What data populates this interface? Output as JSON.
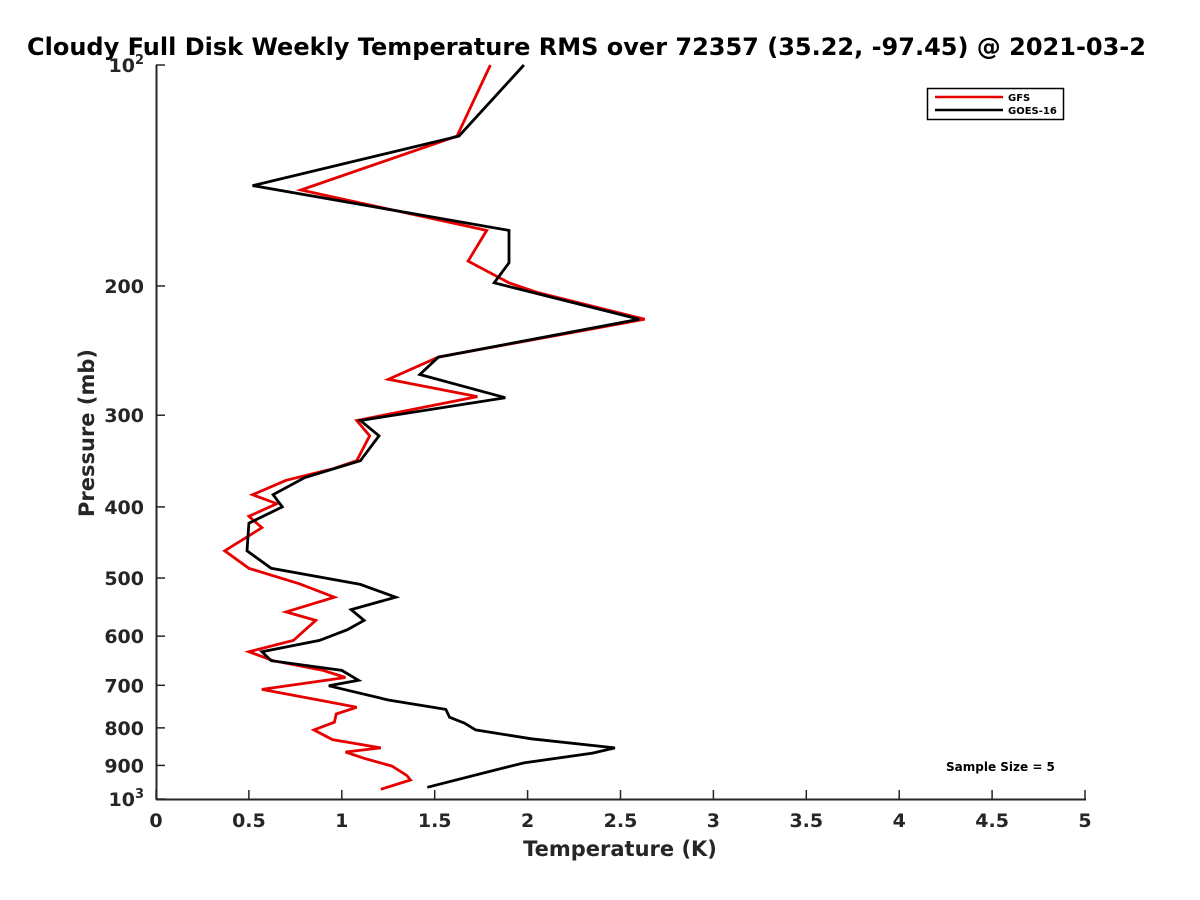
{
  "chart_data": {
    "type": "line",
    "title": "Cloudy Full Disk Weekly Temperature RMS over 72357 (35.22, -97.45) @ 2021-03-2",
    "xlabel": "Temperature (K)",
    "ylabel": "Pressure (mb)",
    "xlim": [
      0,
      5
    ],
    "ylim": [
      1000,
      100
    ],
    "y_scale": "log",
    "x_ticks": [
      "0",
      "0.5",
      "1",
      "1.5",
      "2",
      "2.5",
      "3",
      "3.5",
      "4",
      "4.5",
      "5"
    ],
    "x_tick_values": [
      0,
      0.5,
      1,
      1.5,
      2,
      2.5,
      3,
      3.5,
      4,
      4.5,
      5
    ],
    "y_ticks": [
      {
        "value": 100,
        "label": "10",
        "sup": "2"
      },
      {
        "value": 200,
        "label": "200"
      },
      {
        "value": 300,
        "label": "300"
      },
      {
        "value": 400,
        "label": "400"
      },
      {
        "value": 500,
        "label": "500"
      },
      {
        "value": 600,
        "label": "600"
      },
      {
        "value": 700,
        "label": "700"
      },
      {
        "value": 800,
        "label": "800"
      },
      {
        "value": 900,
        "label": "900"
      },
      {
        "value": 1000,
        "label": "10",
        "sup": "3"
      }
    ],
    "grid": false,
    "legend": "top-right",
    "annotation": "Sample Size = 5",
    "series": [
      {
        "name": "GFS",
        "color": "#e60000",
        "points": [
          [
            1.8,
            100
          ],
          [
            1.62,
            125
          ],
          [
            0.78,
            148
          ],
          [
            1.78,
            168
          ],
          [
            1.68,
            185
          ],
          [
            1.9,
            198
          ],
          [
            2.05,
            204
          ],
          [
            2.63,
            222
          ],
          [
            1.52,
            250
          ],
          [
            1.25,
            268
          ],
          [
            1.73,
            283
          ],
          [
            1.08,
            305
          ],
          [
            1.15,
            320
          ],
          [
            1.08,
            346
          ],
          [
            0.95,
            355
          ],
          [
            0.7,
            368
          ],
          [
            0.52,
            385
          ],
          [
            0.65,
            396
          ],
          [
            0.5,
            412
          ],
          [
            0.57,
            427
          ],
          [
            0.37,
            459
          ],
          [
            0.5,
            485
          ],
          [
            0.77,
            509
          ],
          [
            0.96,
            531
          ],
          [
            0.7,
            556
          ],
          [
            0.86,
            571
          ],
          [
            0.8,
            589
          ],
          [
            0.74,
            608
          ],
          [
            0.5,
            630
          ],
          [
            0.63,
            648
          ],
          [
            0.9,
            668
          ],
          [
            1.02,
            683
          ],
          [
            0.57,
            709
          ],
          [
            0.9,
            735
          ],
          [
            1.08,
            750
          ],
          [
            0.97,
            766
          ],
          [
            0.96,
            786
          ],
          [
            0.85,
            805
          ],
          [
            0.95,
            830
          ],
          [
            1.21,
            852
          ],
          [
            1.02,
            863
          ],
          [
            1.12,
            880
          ],
          [
            1.27,
            902
          ],
          [
            1.35,
            929
          ],
          [
            1.37,
            942
          ],
          [
            1.21,
            970
          ]
        ]
      },
      {
        "name": "GOES-16",
        "color": "#000000",
        "points": [
          [
            1.98,
            100
          ],
          [
            1.63,
            125
          ],
          [
            0.52,
            146
          ],
          [
            1.9,
            168
          ],
          [
            1.9,
            186
          ],
          [
            1.82,
            198
          ],
          [
            2.6,
            222
          ],
          [
            1.52,
            250
          ],
          [
            1.42,
            264
          ],
          [
            1.88,
            284
          ],
          [
            1.1,
            305
          ],
          [
            1.2,
            320
          ],
          [
            1.1,
            346
          ],
          [
            0.8,
            365
          ],
          [
            0.63,
            385
          ],
          [
            0.68,
            400
          ],
          [
            0.5,
            421
          ],
          [
            0.49,
            459
          ],
          [
            0.62,
            485
          ],
          [
            1.1,
            510
          ],
          [
            1.29,
            531
          ],
          [
            1.05,
            552
          ],
          [
            1.12,
            571
          ],
          [
            1.03,
            588
          ],
          [
            0.88,
            608
          ],
          [
            0.57,
            630
          ],
          [
            0.62,
            648
          ],
          [
            1.0,
            668
          ],
          [
            1.09,
            689
          ],
          [
            0.93,
            701
          ],
          [
            1.25,
            733
          ],
          [
            1.56,
            755
          ],
          [
            1.58,
            774
          ],
          [
            1.66,
            788
          ],
          [
            1.72,
            805
          ],
          [
            2.02,
            828
          ],
          [
            2.47,
            852
          ],
          [
            2.35,
            866
          ],
          [
            1.98,
            893
          ],
          [
            1.76,
            922
          ],
          [
            1.46,
            964
          ]
        ]
      }
    ]
  }
}
